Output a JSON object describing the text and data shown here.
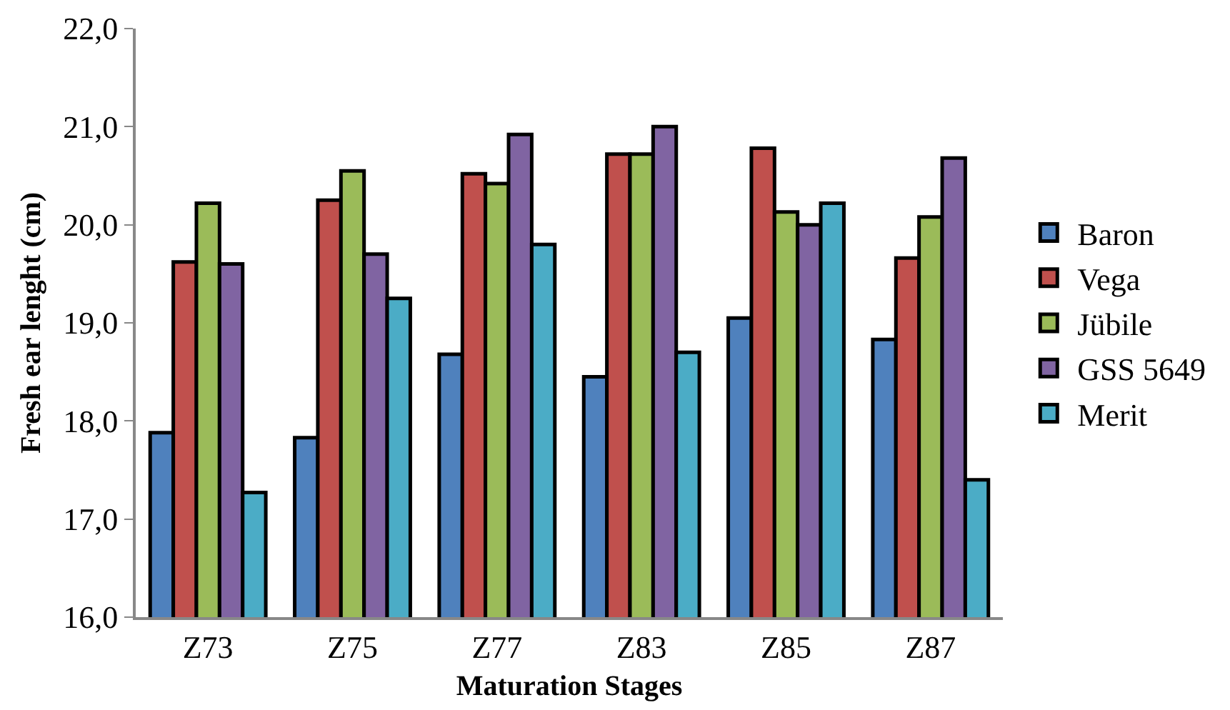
{
  "chart_data": {
    "type": "bar",
    "xlabel": "Maturation Stages",
    "ylabel": "Fresh ear lenght (cm)",
    "categories": [
      "Z73",
      "Z75",
      "Z77",
      "Z83",
      "Z85",
      "Z87"
    ],
    "series": [
      {
        "name": "Baron",
        "color": "#4f81bd",
        "values": [
          17.88,
          17.83,
          18.68,
          18.45,
          19.05,
          18.83
        ]
      },
      {
        "name": "Vega",
        "color": "#c0504d",
        "values": [
          19.62,
          20.25,
          20.52,
          20.72,
          20.78,
          19.66
        ]
      },
      {
        "name": "Jübile",
        "color": "#9bbb59",
        "values": [
          20.22,
          20.55,
          20.42,
          20.72,
          20.13,
          20.08
        ]
      },
      {
        "name": "GSS 5649",
        "color": "#8064a2",
        "values": [
          19.6,
          19.7,
          20.92,
          21.0,
          20.0,
          20.68
        ]
      },
      {
        "name": "Merit",
        "color": "#4bacc6",
        "values": [
          17.27,
          19.25,
          19.8,
          18.7,
          20.22,
          17.4
        ]
      }
    ],
    "ylim": [
      16,
      22
    ],
    "yticks": [
      {
        "value": 16,
        "label": "16,0"
      },
      {
        "value": 17,
        "label": "17,0"
      },
      {
        "value": 18,
        "label": "18,0"
      },
      {
        "value": 19,
        "label": "19,0"
      },
      {
        "value": 20,
        "label": "20,0"
      },
      {
        "value": 21,
        "label": "21,0"
      },
      {
        "value": 22,
        "label": "22,0"
      }
    ],
    "grid": false,
    "legend": "right"
  }
}
